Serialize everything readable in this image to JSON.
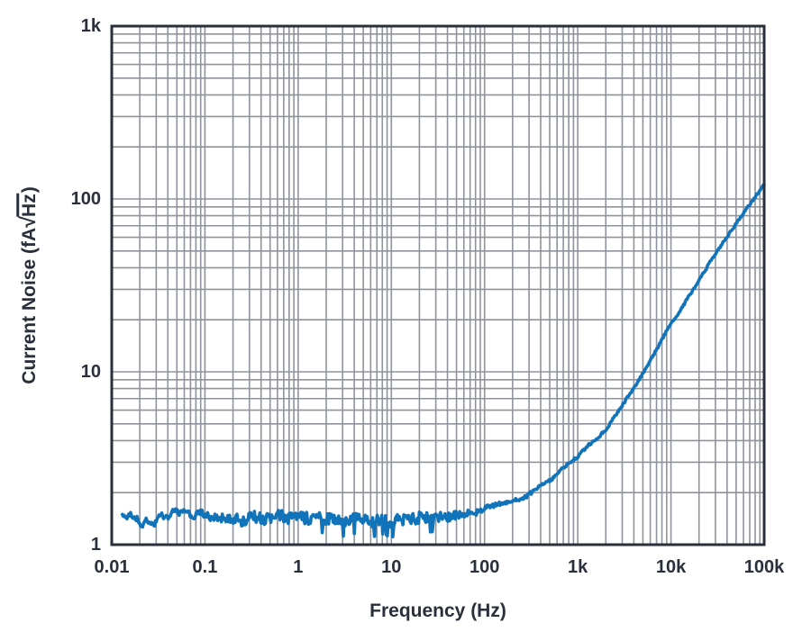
{
  "colors": {
    "ink": "#2a2f3c",
    "grid": "#8f939e",
    "series_blue": "#1173b9",
    "background": "#ffffff"
  },
  "chart_data": {
    "type": "line",
    "title": "",
    "xlabel": "Frequency (Hz)",
    "ylabel": "Current Noise (fA√Hz)",
    "ylabel_parts": {
      "pre": "Current Noise (fA",
      "radical": "√",
      "radicand": "Hz",
      "post": ")"
    },
    "x_scale": "log",
    "y_scale": "log",
    "xlim": [
      0.01,
      100000
    ],
    "ylim": [
      1,
      1000
    ],
    "grid": "major+minor, both axes, gray",
    "legend": "none",
    "x_ticks": [
      {
        "value": 0.01,
        "label": "0.01"
      },
      {
        "value": 0.1,
        "label": "0.1"
      },
      {
        "value": 1,
        "label": "1"
      },
      {
        "value": 10,
        "label": "10"
      },
      {
        "value": 100,
        "label": "100"
      },
      {
        "value": 1000,
        "label": "1k"
      },
      {
        "value": 10000,
        "label": "10k"
      },
      {
        "value": 100000,
        "label": "100k"
      }
    ],
    "y_ticks": [
      {
        "value": 1,
        "label": "1"
      },
      {
        "value": 10,
        "label": "10"
      },
      {
        "value": 100,
        "label": "100"
      },
      {
        "value": 1000,
        "label": "1k"
      }
    ],
    "series": [
      {
        "name": "current-noise",
        "color": "#1173b9",
        "description": "Measured current noise: flat ~1.4 fA/rtHz from 0.013 Hz to ~100 Hz, rising to ~120 fA/rtHz at 100 kHz",
        "points": [
          [
            0.013,
            1.46
          ],
          [
            0.018,
            1.46
          ],
          [
            0.022,
            1.32
          ],
          [
            0.028,
            1.38
          ],
          [
            0.04,
            1.5
          ],
          [
            0.055,
            1.55
          ],
          [
            0.07,
            1.42
          ],
          [
            0.09,
            1.52
          ],
          [
            0.12,
            1.42
          ],
          [
            0.18,
            1.48
          ],
          [
            0.25,
            1.4
          ],
          [
            0.35,
            1.46
          ],
          [
            0.5,
            1.4
          ],
          [
            0.7,
            1.44
          ],
          [
            1,
            1.41
          ],
          [
            1.5,
            1.38
          ],
          [
            2,
            1.42
          ],
          [
            3,
            1.37
          ],
          [
            4,
            1.4
          ],
          [
            6,
            1.36
          ],
          [
            8,
            1.4
          ],
          [
            10,
            1.37
          ],
          [
            15,
            1.4
          ],
          [
            20,
            1.43
          ],
          [
            30,
            1.44
          ],
          [
            40,
            1.46
          ],
          [
            60,
            1.5
          ],
          [
            80,
            1.55
          ],
          [
            100,
            1.62
          ],
          [
            150,
            1.72
          ],
          [
            200,
            1.8
          ],
          [
            300,
            1.95
          ],
          [
            500,
            2.35
          ],
          [
            700,
            2.75
          ],
          [
            1000,
            3.25
          ],
          [
            1500,
            4.0
          ],
          [
            2000,
            4.65
          ],
          [
            3000,
            6.4
          ],
          [
            5000,
            9.8
          ],
          [
            7000,
            13.5
          ],
          [
            10000,
            19
          ],
          [
            15000,
            26.5
          ],
          [
            20000,
            34
          ],
          [
            30000,
            48
          ],
          [
            50000,
            72
          ],
          [
            70000,
            93
          ],
          [
            100000,
            121
          ]
        ],
        "noise": {
          "seed": 20,
          "samples": 700,
          "fast_amplitude_log10": [
            [
              -1.9,
              0.01
            ],
            [
              -1.0,
              0.012
            ],
            [
              -0.5,
              0.03
            ],
            [
              0.0,
              0.034
            ],
            [
              1.3,
              0.034
            ],
            [
              2.0,
              0.014
            ],
            [
              2.7,
              0.008
            ],
            [
              3.2,
              0.006
            ],
            [
              5.0,
              0.005
            ]
          ],
          "slow_amplitude_log10": [
            [
              -1.9,
              0.05
            ],
            [
              -0.7,
              0.045
            ],
            [
              0.0,
              0.02
            ],
            [
              1.5,
              0.015
            ],
            [
              2.5,
              0.008
            ],
            [
              5.0,
              0.006
            ]
          ],
          "spikes": {
            "lf_min": 0.2,
            "lf_max": 1.45,
            "threshold": -0.88,
            "depth": 0.05
          }
        }
      }
    ]
  }
}
